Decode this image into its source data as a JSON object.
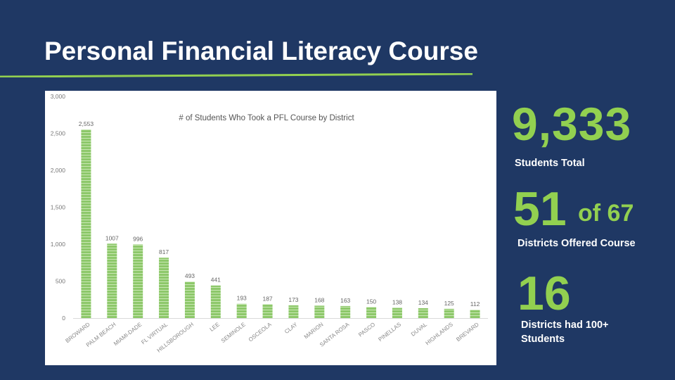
{
  "slide": {
    "title": "Personal Financial Literacy Course",
    "colors": {
      "background": "#1f3864",
      "accent": "#92d050",
      "bar": "#8dc86a",
      "text": "#ffffff"
    }
  },
  "stats": {
    "total_value": "9,333",
    "total_label": "Students Total",
    "districts_value": "51",
    "districts_of": "of 67",
    "districts_label": "Districts Offered Course",
    "hundred_plus_value": "16",
    "hundred_plus_label": "Districts had 100+ Students"
  },
  "chart_data": {
    "type": "bar",
    "title": "# of Students Who Took a PFL Course by District",
    "xlabel": "",
    "ylabel": "",
    "ylim": [
      0,
      3000
    ],
    "yticks": [
      "0",
      "500",
      "1,000",
      "1,500",
      "2,000",
      "2,500",
      "3,000"
    ],
    "ytick_values": [
      0,
      500,
      1000,
      1500,
      2000,
      2500,
      3000
    ],
    "grid": false,
    "legend": "none",
    "categories": [
      "BROWARD",
      "PALM BEACH",
      "MIAMI-DADE",
      "FL VIRTUAL",
      "HILLSBOROUGH",
      "LEE",
      "SEMINOLE",
      "OSCEOLA",
      "CLAY",
      "MARION",
      "SANTA ROSA",
      "PASCO",
      "PINELLAS",
      "DUVAL",
      "HIGHLANDS",
      "BREVARD"
    ],
    "values": [
      2553,
      1007,
      996,
      817,
      493,
      441,
      193,
      187,
      173,
      168,
      163,
      150,
      138,
      134,
      125,
      112
    ],
    "value_labels": [
      "2,553",
      "1007",
      "996",
      "817",
      "493",
      "441",
      "193",
      "187",
      "173",
      "168",
      "163",
      "150",
      "138",
      "134",
      "125",
      "112"
    ]
  }
}
